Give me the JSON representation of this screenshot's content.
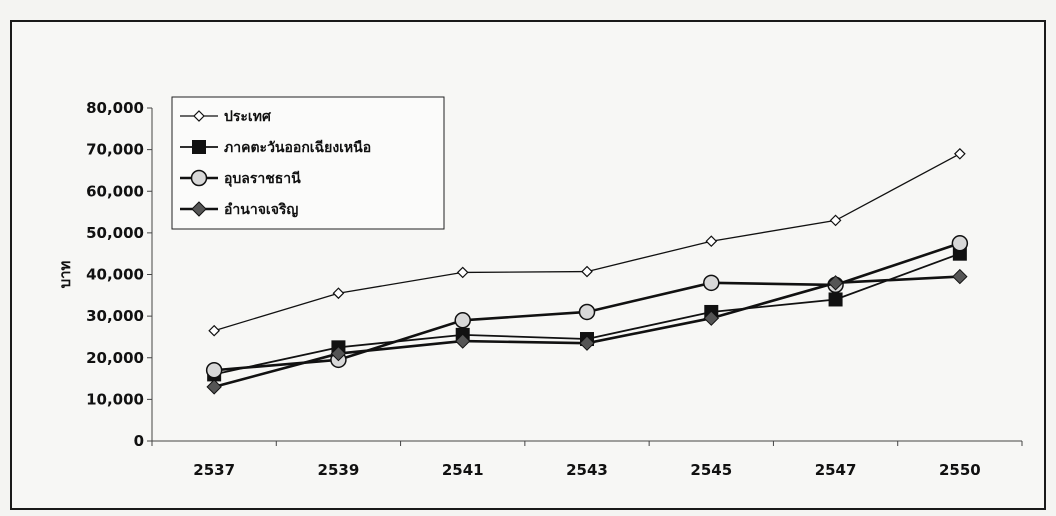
{
  "chart_data": {
    "type": "line",
    "title": "",
    "xlabel": "",
    "ylabel": "บาท",
    "categories": [
      "2537",
      "2539",
      "2541",
      "2543",
      "2545",
      "2547",
      "2550"
    ],
    "ylim": [
      0,
      80000
    ],
    "yticks": [
      0,
      10000,
      20000,
      30000,
      40000,
      50000,
      60000,
      70000,
      80000
    ],
    "ytick_labels": [
      "0",
      "10,000",
      "20,000",
      "30,000",
      "40,000",
      "50,000",
      "60,000",
      "70,000",
      "80,000"
    ],
    "grid": false,
    "legend_position": "top-left",
    "series": [
      {
        "name": "ประเทศ",
        "marker": "diamond-open",
        "color": "#111111",
        "values": [
          26500,
          35500,
          40500,
          40700,
          48000,
          53000,
          69000
        ]
      },
      {
        "name": "ภาคตะวันออกเฉียงเหนือ",
        "marker": "square",
        "color": "#111111",
        "values": [
          16000,
          22500,
          25500,
          24500,
          31000,
          34000,
          45000
        ]
      },
      {
        "name": "อุบลราชธานี",
        "marker": "circle-open",
        "color": "#111111",
        "values": [
          17000,
          19500,
          29000,
          31000,
          38000,
          37500,
          47500
        ]
      },
      {
        "name": "อำนาจเจริญ",
        "marker": "diamond-filled",
        "color": "#111111",
        "values": [
          13000,
          21000,
          24000,
          23500,
          29500,
          38000,
          39500
        ]
      }
    ]
  }
}
